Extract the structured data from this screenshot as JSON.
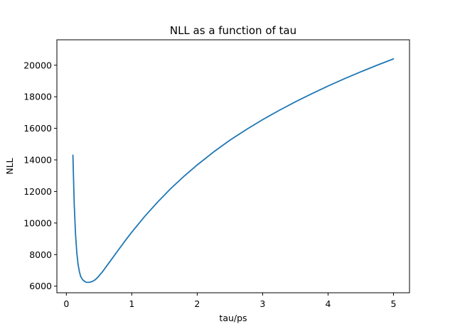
{
  "chart_data": {
    "type": "line",
    "title": "NLL as a function of tau",
    "xlabel": "tau/ps",
    "ylabel": "NLL",
    "xlim": [
      -0.145,
      5.245
    ],
    "ylim": [
      5580,
      21610
    ],
    "xticks": [
      0,
      1,
      2,
      3,
      4,
      5
    ],
    "yticks": [
      6000,
      8000,
      10000,
      12000,
      14000,
      16000,
      18000,
      20000
    ],
    "grid": false,
    "series": [
      {
        "color": "#1f77b4",
        "x": [
          0.1,
          0.12,
          0.14,
          0.16,
          0.18,
          0.2,
          0.22,
          0.25,
          0.28,
          0.3,
          0.33,
          0.36,
          0.4,
          0.44,
          0.48,
          0.55,
          0.62,
          0.7,
          0.8,
          0.9,
          1.0,
          1.2,
          1.4,
          1.6,
          1.8,
          2.0,
          2.25,
          2.5,
          2.75,
          3.0,
          3.25,
          3.5,
          3.75,
          4.0,
          4.25,
          4.5,
          4.75,
          5.0
        ],
        "y": [
          14300,
          11200,
          9300,
          8100,
          7350,
          6900,
          6600,
          6400,
          6300,
          6250,
          6240,
          6250,
          6300,
          6400,
          6560,
          6900,
          7300,
          7750,
          8320,
          8880,
          9420,
          10430,
          11350,
          12200,
          12970,
          13680,
          14500,
          15250,
          15920,
          16550,
          17130,
          17680,
          18190,
          18680,
          19140,
          19580,
          20000,
          20400
        ]
      }
    ]
  }
}
